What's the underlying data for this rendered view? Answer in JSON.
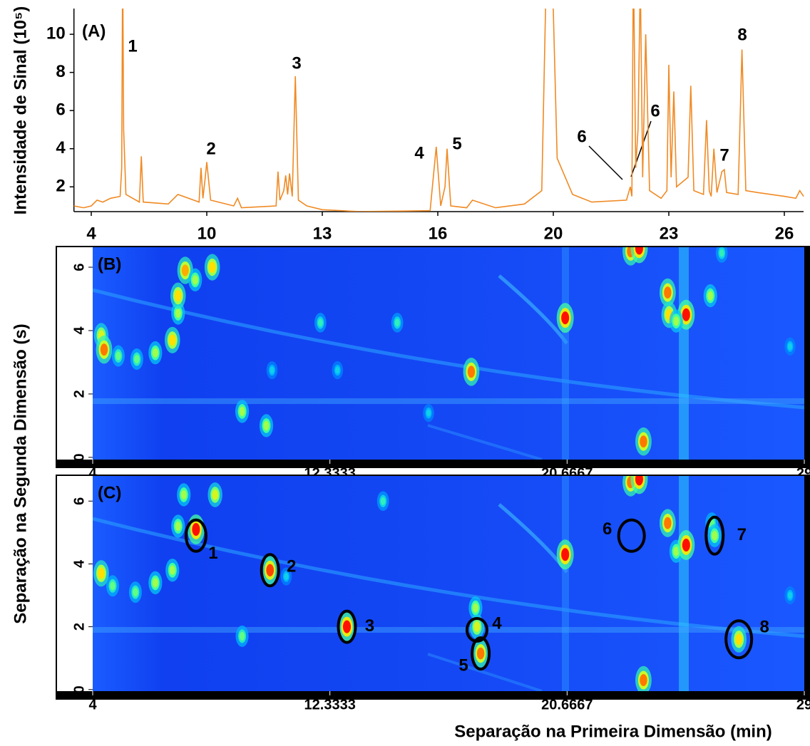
{
  "chart_data": [
    {
      "type": "line",
      "title": "(A)",
      "y_label": "Intensidade de Sinal (10⁵)",
      "color": "#f08a24",
      "xlim": [
        3.1,
        26.5
      ],
      "xticks": [
        4,
        10,
        13,
        16,
        20,
        23,
        26
      ],
      "ylim": [
        0.7,
        11.35
      ],
      "yticks": [
        2,
        4,
        6,
        8,
        10
      ],
      "x": [
        3.1,
        3.6,
        4.0,
        4.3,
        4.6,
        5.0,
        5.5,
        5.58,
        5.63,
        5.68,
        5.8,
        6.5,
        6.6,
        6.7,
        8,
        8.5,
        9.6,
        9.7,
        9.8,
        9.9,
        10.0,
        10.1,
        10.7,
        10.8,
        10.9,
        11.8,
        11.85,
        11.9,
        12.0,
        12.05,
        12.1,
        12.15,
        12.22,
        12.3,
        12.38,
        12.6,
        13,
        14,
        15.8,
        15.96,
        16.1,
        16.25,
        16.32,
        16.45,
        17,
        17.2,
        18,
        19,
        19.6,
        19.85,
        20.1,
        20.5,
        21,
        21.9,
        22.0,
        22.04,
        22.08,
        22.14,
        22.2,
        22.26,
        22.32,
        22.4,
        22.5,
        22.8,
        22.95,
        23.0,
        23.06,
        23.13,
        23.2,
        23.5,
        23.57,
        23.65,
        23.9,
        23.98,
        24.05,
        24.1,
        24.17,
        24.25,
        24.38,
        24.44,
        24.5,
        24.8,
        24.9,
        25.0,
        25.3,
        26,
        26.3,
        26.4,
        26.5
      ],
      "values": [
        1.0,
        0.9,
        1.0,
        1.3,
        1.2,
        1.4,
        1.5,
        3,
        14,
        5,
        1.6,
        1.2,
        3.6,
        1.2,
        1.1,
        1.6,
        1.2,
        3.0,
        1.4,
        2.3,
        3.3,
        1.3,
        1.0,
        1.4,
        0.9,
        1.0,
        2.8,
        1.3,
        1.8,
        2.6,
        1.6,
        2.7,
        1.5,
        7.8,
        1.3,
        1.0,
        0.8,
        0.7,
        0.75,
        4.1,
        1.0,
        2.0,
        4.0,
        1.0,
        0.9,
        1.3,
        0.9,
        1.1,
        1.8,
        20,
        3.5,
        1.6,
        1.2,
        1.3,
        2.0,
        1.5,
        14,
        3,
        5,
        13,
        2.5,
        10,
        1.8,
        1.4,
        1.8,
        8.4,
        2.5,
        7.0,
        2.0,
        2.5,
        7.3,
        1.8,
        1.6,
        5.5,
        1.8,
        1.5,
        4.0,
        1.7,
        2.8,
        2.9,
        1.7,
        1.6,
        9.2,
        1.8,
        1.7,
        1.5,
        1.4,
        1.8,
        1.5
      ],
      "peak_labels": [
        "1",
        "2",
        "3",
        "4",
        "5",
        "6",
        "6",
        "7",
        "8"
      ]
    },
    {
      "type": "heatmap",
      "title": "(B)",
      "y_label": "Separação na Segunda Dimensão (s)",
      "xlim": [
        4,
        29
      ],
      "xticks": [
        4,
        12.3333,
        20.6667,
        29
      ],
      "ylim": [
        -0.07,
        6.63
      ],
      "yticks": [
        0,
        2,
        4,
        6
      ],
      "spots": {
        "x": [
          4.3,
          4.4,
          4.9,
          5.55,
          6.2,
          6.8,
          7.0,
          7.0,
          7.25,
          7.6,
          8.2,
          9.25,
          10.1,
          12.0,
          14.7,
          17.3,
          20.6,
          22.9,
          23.2,
          23.35,
          24.2,
          24.25,
          24.85,
          24.5,
          25.7,
          26.1,
          28.5,
          12.6,
          10.3,
          15.8
        ],
        "y": [
          3.85,
          3.4,
          3.2,
          3.1,
          3.3,
          3.7,
          4.55,
          5.1,
          5.9,
          5.6,
          6.0,
          1.45,
          1.0,
          4.25,
          4.25,
          2.7,
          4.4,
          6.5,
          6.6,
          0.5,
          5.2,
          4.5,
          4.5,
          4.3,
          5.1,
          6.45,
          3.5,
          2.75,
          2.75,
          1.4
        ],
        "intensity": [
          0.7,
          0.9,
          0.5,
          0.5,
          0.6,
          0.8,
          0.6,
          0.8,
          0.85,
          0.6,
          0.8,
          0.6,
          0.6,
          0.4,
          0.4,
          0.9,
          1.0,
          0.9,
          1.0,
          0.9,
          0.9,
          0.8,
          1.0,
          0.6,
          0.6,
          0.4,
          0.3,
          0.3,
          0.3,
          0.3
        ]
      }
    },
    {
      "type": "heatmap",
      "title": "(C)",
      "x_label": "Separação na Primeira Dimensão (min)",
      "xlim": [
        4,
        29
      ],
      "xticks": [
        4,
        12.3333,
        20.6667,
        29
      ],
      "ylim": [
        -0.05,
        6.8
      ],
      "yticks": [
        0,
        2,
        4,
        6
      ],
      "spots": {
        "x": [
          4.3,
          4.7,
          5.5,
          6.2,
          6.8,
          7.0,
          7.2,
          7.63,
          8.3,
          9.25,
          10.23,
          10.8,
          12.93,
          14.2,
          17.45,
          17.5,
          17.63,
          20.6,
          22.9,
          23.2,
          23.35,
          24.2,
          24.5,
          24.85,
          25.75,
          25.85,
          26.7,
          28.5
        ],
        "y": [
          3.7,
          3.3,
          3.1,
          3.4,
          3.8,
          5.2,
          6.2,
          5.1,
          6.2,
          1.7,
          3.8,
          3.6,
          2.0,
          6.0,
          2.6,
          2.0,
          1.15,
          4.3,
          6.6,
          6.7,
          0.3,
          5.3,
          4.4,
          4.6,
          5.3,
          4.9,
          1.6,
          3.0
        ],
        "intensity": [
          0.8,
          0.5,
          0.5,
          0.6,
          0.6,
          0.6,
          0.6,
          1.0,
          0.7,
          0.5,
          0.95,
          0.3,
          1.0,
          0.4,
          0.6,
          0.7,
          0.9,
          1.0,
          0.9,
          1.0,
          0.9,
          0.9,
          0.6,
          1.0,
          0.5,
          0.6,
          0.8,
          0.3
        ]
      },
      "markers": {
        "labels": [
          "1",
          "2",
          "3",
          "4",
          "5",
          "6",
          "7",
          "8"
        ],
        "x": [
          7.63,
          10.23,
          12.93,
          17.5,
          17.63,
          22.93,
          25.85,
          26.7
        ],
        "y": [
          4.9,
          3.8,
          2.0,
          1.9,
          1.15,
          4.9,
          4.9,
          1.6
        ]
      }
    }
  ]
}
